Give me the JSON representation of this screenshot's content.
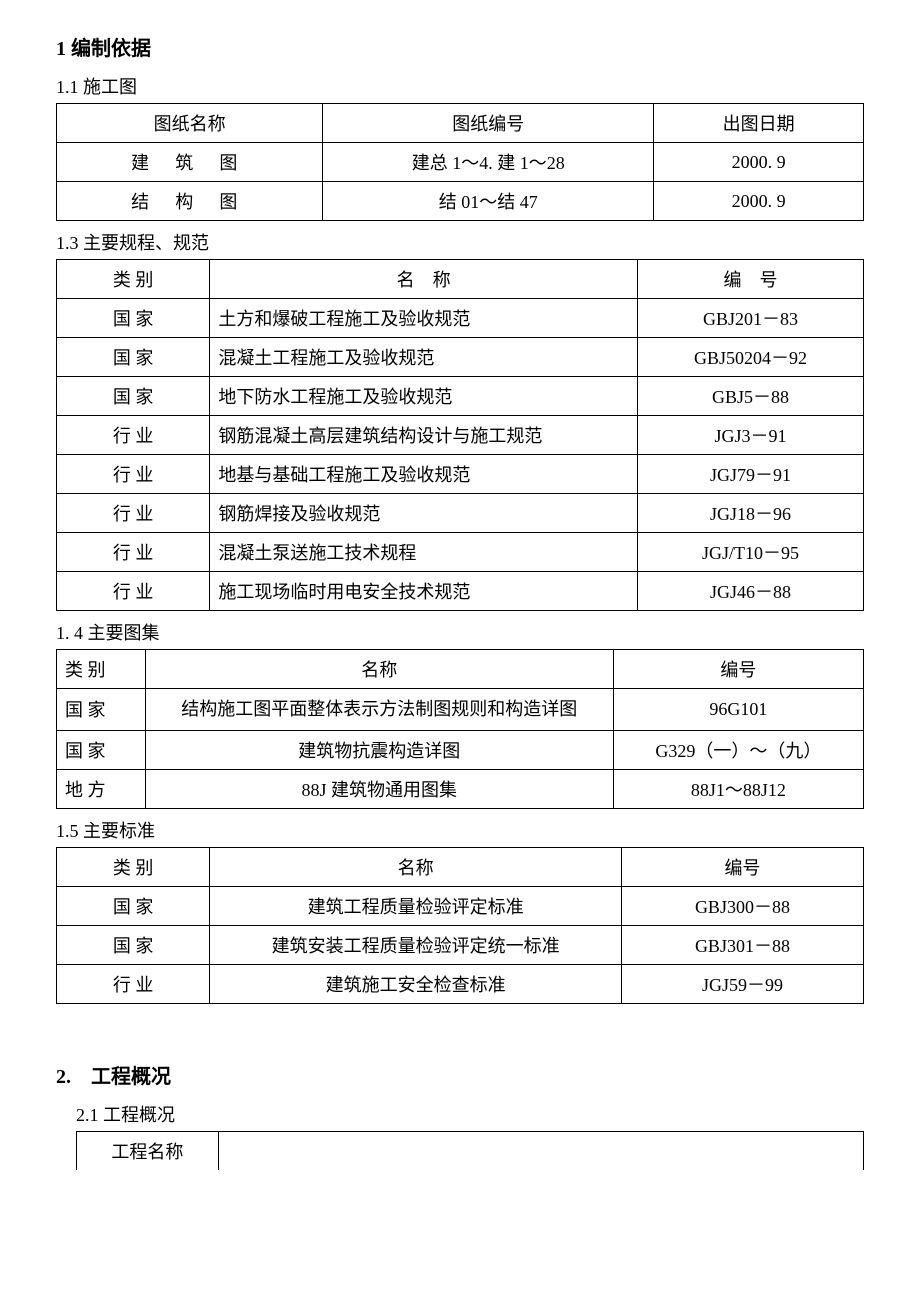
{
  "s1": {
    "title": "1 编制依据",
    "t1": {
      "heading": "1.1 施工图",
      "cols": [
        "图纸名称",
        "图纸编号",
        "出图日期"
      ],
      "rows": [
        {
          "c1": "建 筑 图",
          "c2": "建总 1～4. 建 1～28",
          "c3": "2000. 9"
        },
        {
          "c1": "结 构 图",
          "c2": "结 01～结 47",
          "c3": "2000. 9"
        }
      ],
      "col_widths": [
        "33%",
        "41%",
        "26%"
      ]
    },
    "t2": {
      "heading": "1.3 主要规程、规范",
      "cols": [
        "类 别",
        "名　称",
        "编　号"
      ],
      "rows": [
        {
          "c1": "国 家",
          "c2": "土方和爆破工程施工及验收规范",
          "c3": "GBJ201－83"
        },
        {
          "c1": "国 家",
          "c2": "混凝土工程施工及验收规范",
          "c3": "GBJ50204－92"
        },
        {
          "c1": "国 家",
          "c2": "地下防水工程施工及验收规范",
          "c3": "GBJ5－88"
        },
        {
          "c1": "行 业",
          "c2": "钢筋混凝土高层建筑结构设计与施工规范",
          "c3": "JGJ3－91"
        },
        {
          "c1": "行 业",
          "c2": "地基与基础工程施工及验收规范",
          "c3": "JGJ79－91"
        },
        {
          "c1": "行 业",
          "c2": "钢筋焊接及验收规范",
          "c3": "JGJ18－96"
        },
        {
          "c1": "行 业",
          "c2": "混凝土泵送施工技术规程",
          "c3": "JGJ/T10－95"
        },
        {
          "c1": "行 业",
          "c2": "施工现场临时用电安全技术规范",
          "c3": "JGJ46－88"
        }
      ],
      "col_widths": [
        "19%",
        "53%",
        "28%"
      ]
    },
    "t3": {
      "heading": "1. 4 主要图集",
      "cols": [
        "类 别",
        "名称",
        "编号"
      ],
      "rows": [
        {
          "c1": "国 家",
          "c2": "结构施工图平面整体表示方法制图规则和构造详图",
          "c3": "96G101",
          "wrap": true
        },
        {
          "c1": "国 家",
          "c2": "建筑物抗震构造详图",
          "c3": "G329（一）～（九）"
        },
        {
          "c1": "地 方",
          "c2": "88J 建筑物通用图集",
          "c3": "88J1～88J12"
        }
      ],
      "col_widths": [
        "11%",
        "58%",
        "31%"
      ]
    },
    "t4": {
      "heading": "1.5 主要标准",
      "cols": [
        "类 别",
        "名称",
        "编号"
      ],
      "rows": [
        {
          "c1": "国 家",
          "c2": "建筑工程质量检验评定标准",
          "c3": "GBJ300－88"
        },
        {
          "c1": "国 家",
          "c2": "建筑安装工程质量检验评定统一标准",
          "c3": "GBJ301－88"
        },
        {
          "c1": "行 业",
          "c2": "建筑施工安全检查标准",
          "c3": "JGJ59－99"
        }
      ],
      "col_widths": [
        "19%",
        "51%",
        "30%"
      ]
    }
  },
  "s2": {
    "title": "2.　工程概况",
    "t1": {
      "heading": "2.1 工程概况",
      "row_label": "工程名称",
      "col_widths": [
        "18%",
        "82%"
      ]
    }
  },
  "style": {
    "text_color": "#000000",
    "background_color": "#ffffff",
    "border_color": "#000000",
    "base_fontsize_pt": 14,
    "heading_fontsize_pt": 15
  }
}
